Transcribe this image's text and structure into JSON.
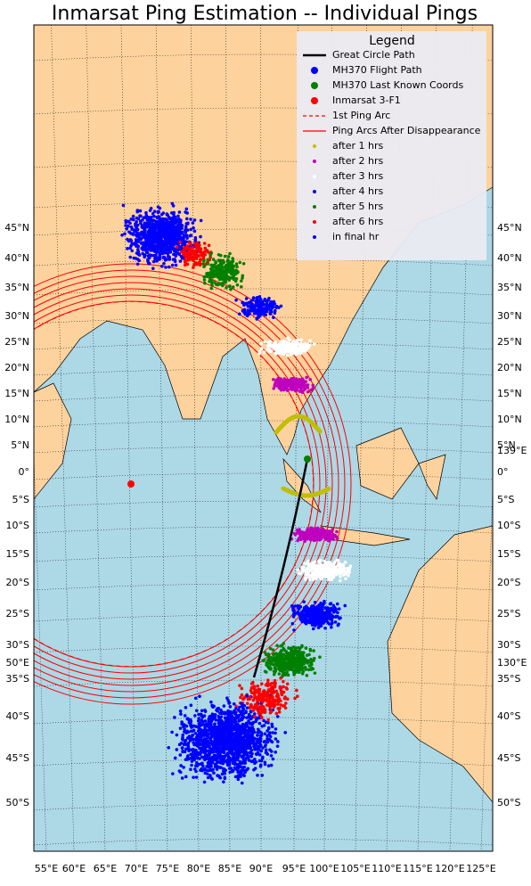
{
  "title": "Inmarsat Ping Estimation -- Individual Pings",
  "legend": {
    "title": "Legend",
    "items": [
      {
        "name": "Great Circle Path",
        "color": "#000000",
        "style": "line"
      },
      {
        "name": "MH370 Flight Path",
        "color": "#0000ff",
        "style": "bigdot"
      },
      {
        "name": "MH370 Last Known Coords",
        "color": "#008000",
        "style": "bigdot"
      },
      {
        "name": "Inmarsat 3-F1",
        "color": "#ff0000",
        "style": "bigdot"
      },
      {
        "name": "1st Ping Arc",
        "color": "#ff0000",
        "style": "dash"
      },
      {
        "name": "Ping Arcs After Disappearance",
        "color": "#ff0000",
        "style": "line"
      },
      {
        "name": "after 1 hrs",
        "color": "#bfbf00",
        "style": "dot"
      },
      {
        "name": "after 2 hrs",
        "color": "#bf00bf",
        "style": "dot"
      },
      {
        "name": "after 3 hrs",
        "color": "#ffffff",
        "style": "dot"
      },
      {
        "name": "after 4 hrs",
        "color": "#0000ff",
        "style": "dot"
      },
      {
        "name": "after 5 hrs",
        "color": "#008000",
        "style": "dot"
      },
      {
        "name": "after 6 hrs",
        "color": "#ff0000",
        "style": "dot"
      },
      {
        "name": "in final hr",
        "color": "#0000ff",
        "style": "dot"
      }
    ]
  },
  "lat_labels": [
    "45°N",
    "40°N",
    "35°N",
    "30°N",
    "25°N",
    "20°N",
    "15°N",
    "10°N",
    "5°N",
    "0°",
    "5°S",
    "10°S",
    "15°S",
    "20°S",
    "25°S",
    "30°S",
    "35°S",
    "40°S",
    "45°S",
    "50°S"
  ],
  "lon_labels": [
    "55°E",
    "60°E",
    "65°E",
    "70°E",
    "75°E",
    "80°E",
    "85°E",
    "90°E",
    "95°E",
    "100°E",
    "105°E",
    "110°E",
    "115°E",
    "120°E",
    "125°E"
  ],
  "extra_labels": {
    "left": [
      "50°E"
    ],
    "right": [
      "139°E",
      "130°E"
    ]
  }
}
